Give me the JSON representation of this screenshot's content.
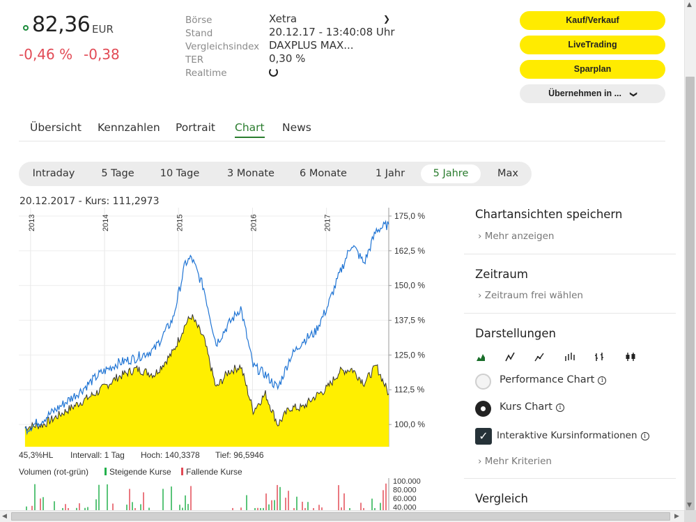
{
  "quote": {
    "price": "82,36",
    "currency": "EUR",
    "change_pct": "-0,46 %",
    "change_abs": "-0,38"
  },
  "meta": {
    "labels": [
      "Börse",
      "Stand",
      "Vergleichsindex",
      "TER",
      "Realtime"
    ],
    "exchange": "Xetra",
    "stand": "20.12.17 - 13:40:08 Uhr",
    "index": "DAXPLUS MAX...",
    "ter": "0,30 %"
  },
  "buttons": {
    "buy_sell": "Kauf/Verkauf",
    "live_trading": "LiveTrading",
    "savings_plan": "Sparplan",
    "adopt": "Übernehmen in ..."
  },
  "tabs": [
    "Übersicht",
    "Kennzahlen",
    "Portrait",
    "Chart",
    "News"
  ],
  "active_tab": "Chart",
  "ranges": [
    "Intraday",
    "5 Tage",
    "10 Tage",
    "3 Monate",
    "6 Monate",
    "1 Jahr",
    "5 Jahre",
    "Max"
  ],
  "active_range": "5 Jahre",
  "chart_header": "20.12.2017  -  Kurs: 111,2973",
  "stats": {
    "hl": "45,3%HL",
    "interval": "Intervall: 1 Tag",
    "high": "Hoch: 140,3378",
    "low": "Tief: 96,5946"
  },
  "volume_legend": {
    "title": "Volumen (rot-grün)",
    "up": "Steigende Kurse",
    "down": "Fallende Kurse"
  },
  "right_panel": {
    "save_title": "Chartansichten speichern",
    "save_link": "Mehr anzeigen",
    "period_title": "Zeitraum",
    "period_link": "Zeitraum frei wählen",
    "display_title": "Darstellungen",
    "display_icons": [
      "area-chart-icon",
      "line-chart-icon",
      "dot-line-chart-icon",
      "ohlc-bars-icon",
      "hlc-bars-icon",
      "candlestick-icon"
    ],
    "opt_performance": "Performance Chart",
    "opt_kurs": "Kurs Chart",
    "opt_interactive": "Interaktive Kursinformationen",
    "more_criteria": "Mehr Kriterien",
    "compare_title": "Vergleich"
  },
  "colors": {
    "accent_green": "#2a7c2e",
    "negative_red": "#e24a55",
    "button_yellow": "#ffeb00",
    "fund_fill": "#ffef00",
    "index_line": "#1f74d4"
  },
  "chart_data": {
    "type": "area",
    "x_year_labels": [
      "2013",
      "2014",
      "2015",
      "2016",
      "2017"
    ],
    "y_tick_labels": [
      "175,0 %",
      "162,5 %",
      "150,0 %",
      "137,5 %",
      "125,0 %",
      "112,5 %",
      "100,0 %"
    ],
    "ylim": [
      92,
      178
    ],
    "x": [
      "2013-01",
      "2013-04",
      "2013-07",
      "2013-10",
      "2014-01",
      "2014-04",
      "2014-07",
      "2014-10",
      "2015-01",
      "2015-03",
      "2015-04",
      "2015-06",
      "2015-08",
      "2015-10",
      "2015-12",
      "2016-02",
      "2016-04",
      "2016-06",
      "2016-08",
      "2016-10",
      "2016-12",
      "2017-02",
      "2017-04",
      "2017-06",
      "2017-08",
      "2017-10",
      "2017-12"
    ],
    "series": [
      {
        "values": [
          99,
          100,
          104,
          108,
          112,
          117,
          120,
          118,
          126,
          136,
          139,
          131,
          113,
          119,
          121,
          105,
          111,
          100,
          106,
          106,
          110,
          113,
          119,
          120,
          115,
          121,
          111
        ]
      },
      {
        "values": [
          98,
          102,
          107,
          112,
          118,
          122,
          124,
          127,
          138,
          158,
          160,
          149,
          129,
          136,
          142,
          121,
          118,
          113,
          124,
          130,
          133,
          142,
          154,
          165,
          158,
          170,
          172
        ]
      }
    ],
    "volume_scale_labels": [
      "100.000",
      "80.000",
      "60.000",
      "40.000"
    ]
  }
}
